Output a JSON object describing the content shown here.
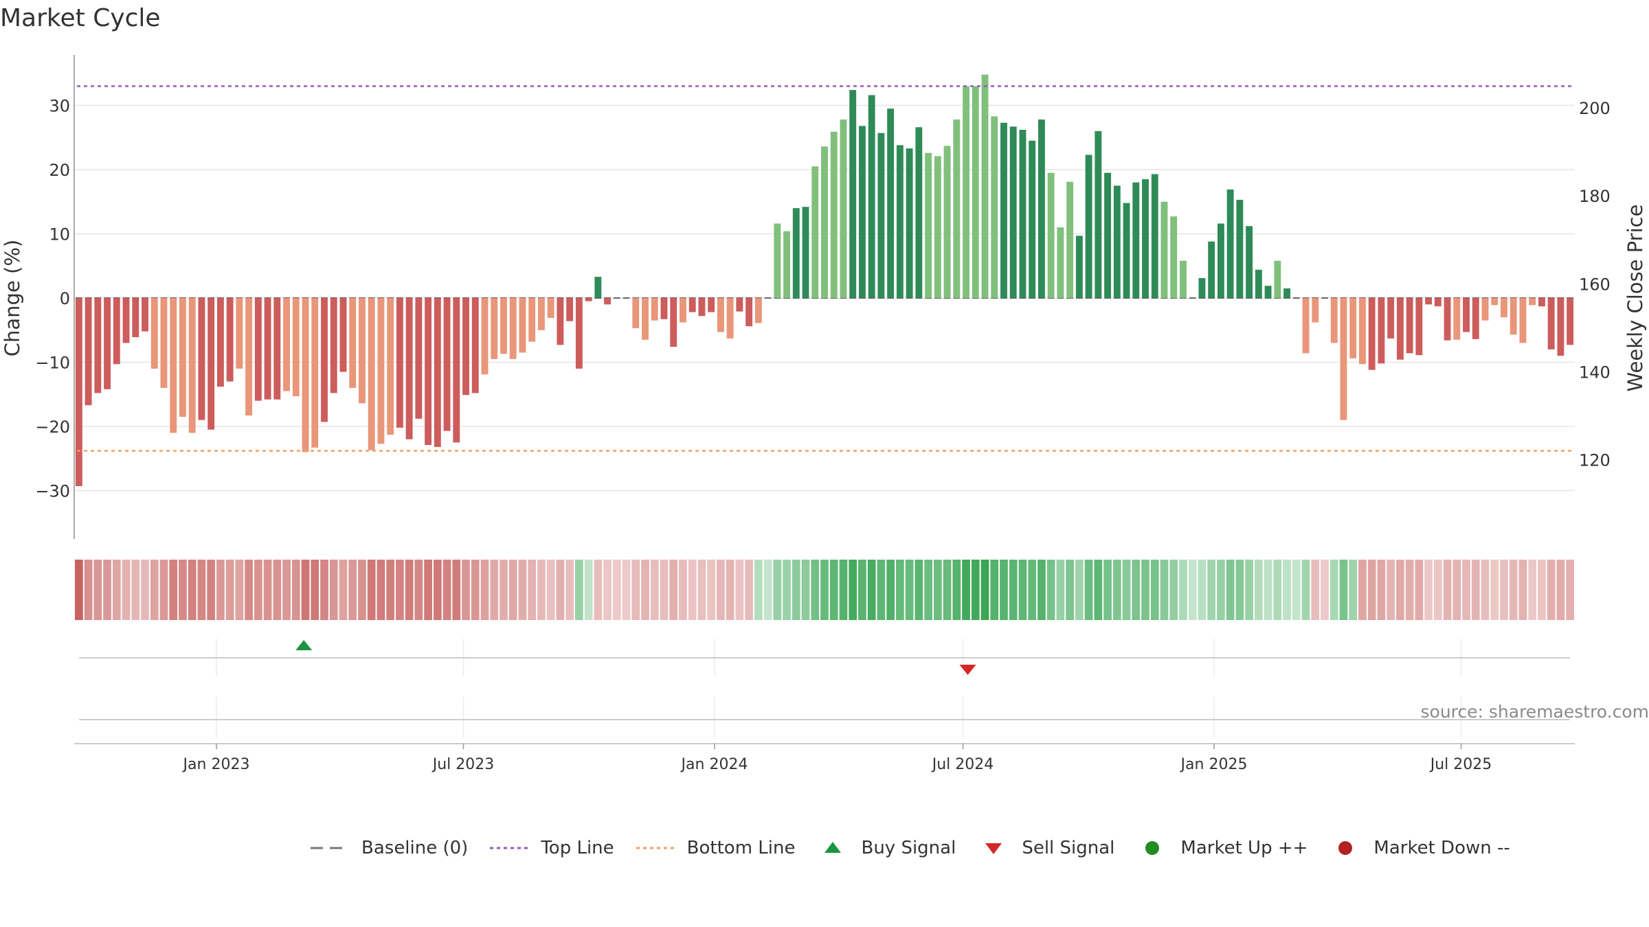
{
  "title": "Market Cycle",
  "source": "source: sharemaestro.com",
  "colors": {
    "up_strong": "#2e8b57",
    "up_light": "#80c07c",
    "down_strong": "#cd5c5c",
    "down_light": "#e9967a",
    "top_line": "#9b59b6",
    "bottom_line": "#f0a060",
    "baseline": "#777777",
    "buy": "#1a9641",
    "sell": "#d62728",
    "market_up": "#228b22",
    "market_down": "#b22222"
  },
  "chart_data": {
    "type": "bar",
    "ylabel": "Change (%)",
    "y2label": "Weekly Close Price",
    "ylim": [
      -38,
      38
    ],
    "y_ticks": [
      30,
      20,
      10,
      0,
      -10,
      -20,
      -30
    ],
    "y_tick_labels": [
      "30",
      "20",
      "10",
      "0",
      "−10",
      "−20",
      "−30"
    ],
    "y2lim": [
      102,
      212
    ],
    "y2_ticks": [
      200,
      180,
      160,
      140,
      120
    ],
    "y2_tick_labels": [
      "200",
      "180",
      "160",
      "140",
      "120"
    ],
    "top_line": 33,
    "bottom_line": -23.8,
    "x_ticks": [
      "Jan 2023",
      "Jul 2023",
      "Jan 2024",
      "Jul 2024",
      "Jan 2025",
      "Jul 2025"
    ],
    "series": [
      {
        "values": [
          -29.3,
          -16.7,
          -14.8,
          -14.2,
          -10.3,
          -7.0,
          -6.1,
          -5.2,
          -11.0,
          -14.0,
          -21.0,
          -18.5,
          -21.0,
          -19.0,
          -20.5,
          -13.8,
          -13.0,
          -11.0,
          -18.3,
          -16.0,
          -15.8,
          -15.8,
          -14.5,
          -15.3,
          -24.0,
          -23.3,
          -19.3,
          -14.8,
          -11.5,
          -14.0,
          -16.4,
          -23.7,
          -22.7,
          -21.3,
          -20.2,
          -22.0,
          -18.8,
          -22.9,
          -23.2,
          -20.7,
          -22.5,
          -15.1,
          -14.8,
          -11.9,
          -9.5,
          -8.7,
          -9.5,
          -8.5,
          -6.8,
          -5.0,
          -3.1,
          -7.3,
          -3.6,
          -11.0,
          -0.5,
          3.3,
          -1.0,
          0,
          0,
          -4.7,
          -6.5,
          -3.5,
          -3.3,
          -7.6,
          -3.8,
          -2.2,
          -2.8,
          -2.2,
          -5.3,
          -6.3,
          -2.1,
          -4.4,
          -3.9,
          0,
          11.6,
          10.4,
          14.0,
          14.2,
          20.5,
          23.6,
          25.9,
          27.8,
          32.4,
          26.8,
          31.6,
          25.7,
          29.5,
          23.8,
          23.3,
          26.6,
          22.6,
          22.1,
          23.7,
          27.8,
          33.0,
          33.0,
          34.8,
          28.3,
          27.3,
          26.7,
          26.2,
          24.5,
          27.8,
          19.5,
          11.0,
          18.1,
          9.7,
          22.3,
          26.0,
          19.5,
          17.5,
          14.8,
          18.0,
          18.5,
          19.3,
          15.0,
          12.7,
          5.8,
          0,
          3.1,
          8.8,
          11.6,
          16.9,
          15.3,
          11.2,
          4.4,
          1.9,
          5.8,
          1.5,
          0,
          -8.6,
          -3.8,
          0,
          -7.0,
          -19.0,
          -9.4,
          -10.3,
          -11.2,
          -10.2,
          -6.3,
          -9.6,
          -8.6,
          -8.9,
          -1.0,
          -1.3,
          -6.6,
          -6.5,
          -5.3,
          -6.4,
          -3.5,
          -1.1,
          -3.0,
          -5.7,
          -7.0,
          -1.1,
          -1.3,
          -8.0,
          -9.0,
          -7.3
        ],
        "shade": "ddddddddlllllddddlldddlllldddllllldddddddddllllllllddddddlllllddldddllddldllddllllddddddddlllllllldddddllldddddddddllllddddddddlddllllllldddddddddlddlllllldddddlllll"
      }
    ],
    "sentiment_strip": "rrrrrrrrrrrrrrrrrrrrrrrrrrrrrrrrrrrrrrrrrrrrrrrrrrrrrggrrrrrrrrrrrrrrrrrgggggggggggggggggggggggggggggggggggggggggggggggggggggggggggrrgggrrrrrrrrrrrrrrrrrrrrrrrrrr",
    "signals": [
      {
        "type": "buy",
        "date": "Mar 2023"
      },
      {
        "type": "sell",
        "date": "Jul 2024"
      }
    ]
  },
  "legend": [
    {
      "label": "Baseline (0)",
      "icon": "dash-line"
    },
    {
      "label": "Top Line",
      "icon": "dotted-purple"
    },
    {
      "label": "Bottom Line",
      "icon": "dotted-orange"
    },
    {
      "label": "Buy Signal",
      "icon": "triangle-up-green"
    },
    {
      "label": "Sell Signal",
      "icon": "triangle-down-red"
    },
    {
      "label": "Market Up ++",
      "icon": "dot-green"
    },
    {
      "label": "Market Down --",
      "icon": "dot-red"
    }
  ]
}
